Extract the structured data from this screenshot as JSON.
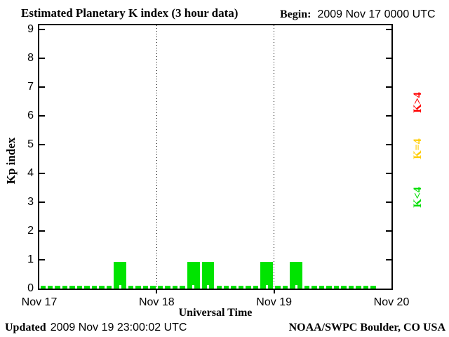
{
  "title": "Estimated Planetary K index (3 hour data)",
  "begin": {
    "label": "Begin:",
    "value": "2009 Nov 17 0000 UTC"
  },
  "footer": {
    "updated_label": "Updated",
    "updated_value": "2009 Nov 19 23:00:02 UTC",
    "credit": "NOAA/SWPC Boulder, CO USA"
  },
  "chart_data": {
    "type": "bar",
    "title": "Estimated Planetary K index (3 hour data)",
    "xlabel": "Universal Time",
    "ylabel": "Kp index",
    "ylim": [
      0,
      9
    ],
    "y_ticks": [
      0,
      1,
      2,
      3,
      4,
      5,
      6,
      7,
      8,
      9
    ],
    "x_tick_labels": [
      "Nov 17",
      "Nov 18",
      "Nov 19",
      "Nov 20"
    ],
    "bar_interval_hours": 3,
    "slots_shown": 24,
    "values": [
      0,
      0,
      0,
      0,
      0,
      1,
      0,
      0,
      0,
      0,
      1,
      1,
      0,
      0,
      0,
      1,
      0,
      1,
      0,
      0,
      0,
      0,
      0
    ],
    "bar_color": "#00e400",
    "grid": "dotted vertical lines at day boundaries",
    "legend_position": "right",
    "legend": [
      {
        "label": "K>4",
        "color": "#ff0000"
      },
      {
        "label": "K=4",
        "color": "#ffcc00"
      },
      {
        "label": "K<4",
        "color": "#00dd00"
      }
    ]
  }
}
